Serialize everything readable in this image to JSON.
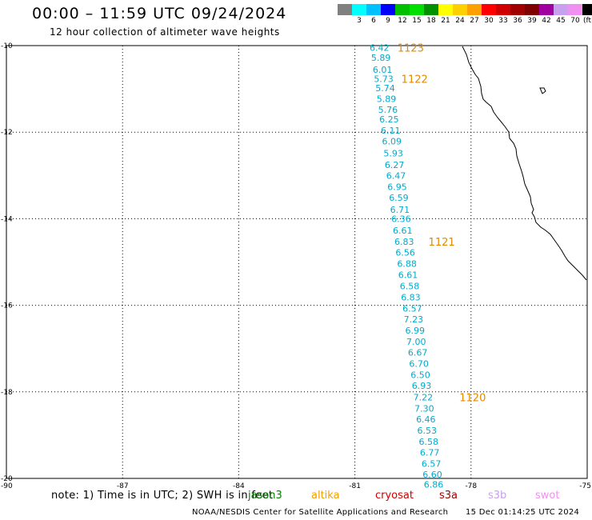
{
  "header": {
    "title": "00:00 – 11:59 UTC 09/24/2024",
    "subtitle": "12 hour collection of altimeter wave heights"
  },
  "legend": {
    "unit": "(ft)",
    "bins": [
      {
        "label": "",
        "color": "#808080"
      },
      {
        "label": "3",
        "color": "#00ffff"
      },
      {
        "label": "6",
        "color": "#00c0ff"
      },
      {
        "label": "9",
        "color": "#0000ff"
      },
      {
        "label": "12",
        "color": "#00c000"
      },
      {
        "label": "15",
        "color": "#00e000"
      },
      {
        "label": "18",
        "color": "#009000"
      },
      {
        "label": "21",
        "color": "#ffff00"
      },
      {
        "label": "24",
        "color": "#ffd000"
      },
      {
        "label": "27",
        "color": "#ffa000"
      },
      {
        "label": "30",
        "color": "#ff0000"
      },
      {
        "label": "33",
        "color": "#d00000"
      },
      {
        "label": "36",
        "color": "#a00000"
      },
      {
        "label": "39",
        "color": "#800000"
      },
      {
        "label": "42",
        "color": "#a000a0"
      },
      {
        "label": "45",
        "color": "#c8a0f0"
      },
      {
        "label": "70",
        "color": "#f090f0"
      },
      {
        "label": "",
        "color": "#000000"
      }
    ]
  },
  "map": {
    "lat_labels": [
      "-10",
      "-12",
      "-14",
      "-16",
      "-18",
      "-20"
    ],
    "lon_labels": [
      "-90",
      "-87",
      "-84",
      "-81",
      "-78",
      "-75"
    ],
    "lat_range": [
      -20,
      -10
    ],
    "lon_range": [
      -90,
      -75
    ],
    "gridlines": "dotted"
  },
  "observations": [
    {
      "lat": -10.05,
      "lon": -80.62,
      "swh": "6.42"
    },
    {
      "lat": -10.28,
      "lon": -80.58,
      "swh": "5.89"
    },
    {
      "lat": -10.55,
      "lon": -80.54,
      "swh": "6.01"
    },
    {
      "lat": -10.77,
      "lon": -80.51,
      "swh": "5.73"
    },
    {
      "lat": -10.98,
      "lon": -80.47,
      "swh": "5.74"
    },
    {
      "lat": -11.23,
      "lon": -80.44,
      "swh": "5.89"
    },
    {
      "lat": -11.48,
      "lon": -80.4,
      "swh": "5.76"
    },
    {
      "lat": -11.7,
      "lon": -80.37,
      "swh": "6.25"
    },
    {
      "lat": -11.96,
      "lon": -80.33,
      "swh": "6.11"
    },
    {
      "lat": -12.21,
      "lon": -80.3,
      "swh": "6.09"
    },
    {
      "lat": -12.49,
      "lon": -80.26,
      "swh": "5.93"
    },
    {
      "lat": -12.75,
      "lon": -80.23,
      "swh": "6.27"
    },
    {
      "lat": -13.0,
      "lon": -80.19,
      "swh": "6.47"
    },
    {
      "lat": -13.26,
      "lon": -80.16,
      "swh": "6.95"
    },
    {
      "lat": -13.51,
      "lon": -80.12,
      "swh": "6.59"
    },
    {
      "lat": -13.79,
      "lon": -80.09,
      "swh": "6.71"
    },
    {
      "lat": -14.0,
      "lon": -80.06,
      "swh": "6.36"
    },
    {
      "lat": -14.27,
      "lon": -80.02,
      "swh": "6.61"
    },
    {
      "lat": -14.53,
      "lon": -79.98,
      "swh": "6.83"
    },
    {
      "lat": -14.78,
      "lon": -79.95,
      "swh": "6.56"
    },
    {
      "lat": -15.04,
      "lon": -79.91,
      "swh": "6.88"
    },
    {
      "lat": -15.3,
      "lon": -79.88,
      "swh": "6.61"
    },
    {
      "lat": -15.55,
      "lon": -79.84,
      "swh": "6.58"
    },
    {
      "lat": -15.81,
      "lon": -79.81,
      "swh": "6.83"
    },
    {
      "lat": -16.07,
      "lon": -79.77,
      "swh": "6.57"
    },
    {
      "lat": -16.32,
      "lon": -79.74,
      "swh": "7.23"
    },
    {
      "lat": -16.58,
      "lon": -79.7,
      "swh": "6.99"
    },
    {
      "lat": -16.84,
      "lon": -79.67,
      "swh": "7.00"
    },
    {
      "lat": -17.09,
      "lon": -79.63,
      "swh": "6.67"
    },
    {
      "lat": -17.35,
      "lon": -79.6,
      "swh": "6.70"
    },
    {
      "lat": -17.61,
      "lon": -79.56,
      "swh": "6.50"
    },
    {
      "lat": -17.86,
      "lon": -79.53,
      "swh": "6.93"
    },
    {
      "lat": -18.12,
      "lon": -79.49,
      "swh": "7.22"
    },
    {
      "lat": -18.38,
      "lon": -79.46,
      "swh": "7.30"
    },
    {
      "lat": -18.63,
      "lon": -79.42,
      "swh": "6.46"
    },
    {
      "lat": -18.89,
      "lon": -79.39,
      "swh": "6.53"
    },
    {
      "lat": -19.15,
      "lon": -79.35,
      "swh": "6.58"
    },
    {
      "lat": -19.4,
      "lon": -79.32,
      "swh": "6.77"
    },
    {
      "lat": -19.66,
      "lon": -79.28,
      "swh": "6.57"
    },
    {
      "lat": -19.91,
      "lon": -79.25,
      "swh": "6.60"
    },
    {
      "lat": -20.14,
      "lon": -79.22,
      "swh": "6.86"
    }
  ],
  "pass_times": [
    {
      "lat": -10.05,
      "lon": -79.9,
      "label": "1123"
    },
    {
      "lat": -10.77,
      "lon": -79.8,
      "label": "1122"
    },
    {
      "lat": -14.53,
      "lon": -79.1,
      "label": "1121"
    },
    {
      "lat": -18.12,
      "lon": -78.3,
      "label": "1120"
    }
  ],
  "note": {
    "text": "note: 1) Time is in UTC; 2) SWH is in feet",
    "satellites": [
      {
        "name": "jason3",
        "color": "#008000"
      },
      {
        "name": "altika",
        "color": "#f0a000"
      },
      {
        "name": "cryosat",
        "color": "#d00000"
      },
      {
        "name": "s3a",
        "color": "#a00000"
      },
      {
        "name": "s3b",
        "color": "#c8a0f0"
      },
      {
        "name": "swot",
        "color": "#f090f0"
      }
    ]
  },
  "footer": {
    "credit": "NOAA/NESDIS Center for Satellite Applications and Research",
    "timestamp": "15 Dec 01:14:25 UTC 2024"
  }
}
